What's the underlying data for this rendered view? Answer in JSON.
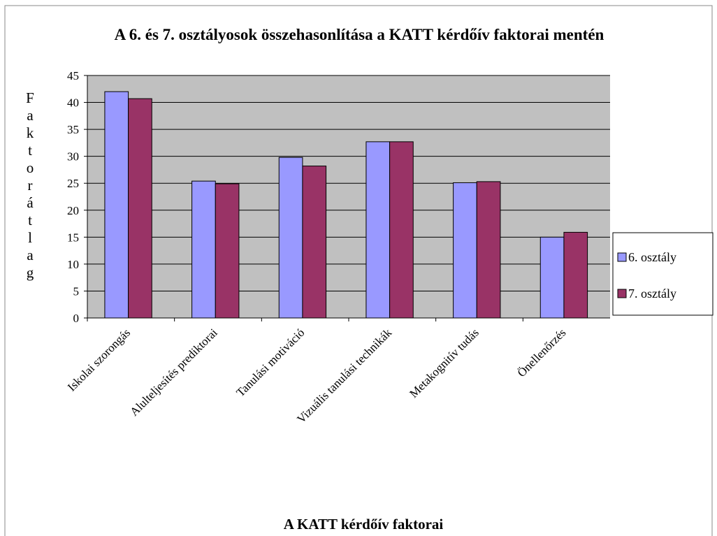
{
  "chart_data": {
    "type": "bar",
    "title": "A 6. és 7. osztályosok összehasonlítása a KATT kérdőív faktorai mentén",
    "x_label": "A KATT kérdőív faktorai",
    "y_label": "Faktorátlag",
    "categories": [
      "Iskolai szorongás",
      "Alulteljesítés prediktorai",
      "Tanulási motiváció",
      "Vizuális tanulási technikák",
      "Metakognitív tudás",
      "Önellenőrzés"
    ],
    "series": [
      {
        "name": "6. osztály",
        "color": "#9999ff",
        "values": [
          42,
          25.4,
          29.8,
          32.7,
          25.1,
          15
        ]
      },
      {
        "name": "7. osztály",
        "color": "#993366",
        "values": [
          40.7,
          24.9,
          28.2,
          32.7,
          25.3,
          15.9
        ]
      }
    ],
    "ylim": [
      0,
      45
    ],
    "yticks": [
      0,
      5,
      10,
      15,
      20,
      25,
      30,
      35,
      40,
      45
    ],
    "grid": true,
    "legend": "right"
  }
}
